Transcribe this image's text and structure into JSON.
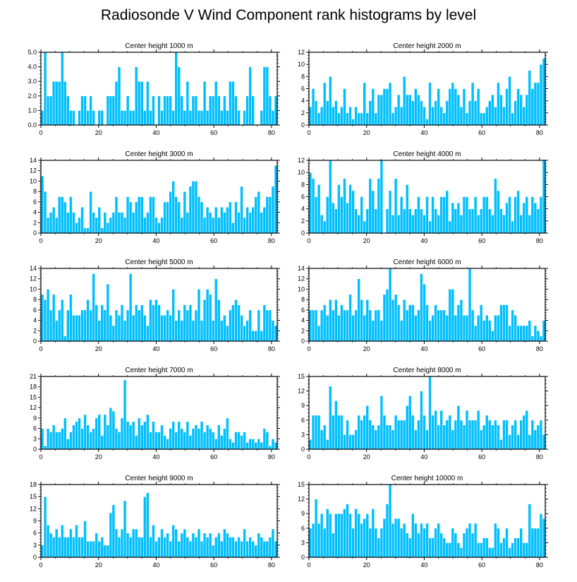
{
  "title": "Radiosonde V Wind Component rank histograms by level",
  "bar_color": "#00BFFF",
  "chart_data": [
    {
      "type": "bar",
      "title": "Center height 1000 m",
      "ylim": [
        0,
        5
      ],
      "yticks": [
        0,
        1,
        2,
        3,
        4,
        5
      ],
      "ytick_labels": [
        "0.0",
        "1.0",
        "2.0",
        "3.0",
        "4.0",
        "5.0"
      ],
      "xlim": [
        0,
        82
      ],
      "xticks": [
        0,
        20,
        40,
        60,
        80
      ],
      "values": [
        1,
        5,
        2,
        2,
        3,
        3,
        3,
        5,
        3,
        2,
        1,
        1,
        0,
        1,
        2,
        2,
        1,
        2,
        1,
        0,
        1,
        1,
        0,
        2,
        2,
        2,
        3,
        4,
        1,
        1,
        2,
        1,
        1,
        4,
        3,
        3,
        1,
        3,
        1,
        2,
        0,
        2,
        1,
        2,
        2,
        2,
        1,
        5,
        4,
        2,
        1,
        3,
        1,
        2,
        2,
        1,
        1,
        3,
        1,
        2,
        2,
        3,
        2,
        1,
        2,
        1,
        3,
        3,
        2,
        1,
        0,
        1,
        2,
        4,
        2,
        0,
        0,
        1,
        4,
        4,
        2,
        1,
        2
      ]
    },
    {
      "type": "bar",
      "title": "Center height 2000 m",
      "ylim": [
        0,
        12
      ],
      "yticks": [
        0,
        2,
        4,
        6,
        8,
        10,
        12
      ],
      "ytick_labels": [
        "0",
        "2",
        "4",
        "6",
        "8",
        "10",
        "12"
      ],
      "xlim": [
        0,
        82
      ],
      "xticks": [
        0,
        20,
        40,
        60,
        80
      ],
      "values": [
        3,
        6,
        4,
        2,
        3,
        7,
        4,
        8,
        3,
        4,
        2,
        3,
        6,
        2,
        3,
        1,
        3,
        2,
        2,
        7,
        2,
        4,
        6,
        2,
        5,
        5,
        6,
        6,
        7,
        2,
        3,
        5,
        3,
        8,
        5,
        5,
        4,
        6,
        5,
        4,
        3,
        1,
        7,
        3,
        4,
        6,
        3,
        2,
        4,
        6,
        7,
        6,
        5,
        3,
        6,
        2,
        4,
        7,
        4,
        6,
        2,
        2,
        3,
        4,
        5,
        3,
        7,
        5,
        3,
        6,
        8,
        2,
        4,
        6,
        5,
        3,
        5,
        9,
        6,
        7,
        7,
        10,
        11
      ]
    },
    {
      "type": "bar",
      "title": "Center height 3000 m",
      "ylim": [
        0,
        14
      ],
      "yticks": [
        0,
        2,
        4,
        6,
        8,
        10,
        12,
        14
      ],
      "ytick_labels": [
        "0",
        "2",
        "4",
        "6",
        "8",
        "10",
        "12",
        "14"
      ],
      "xlim": [
        0,
        82
      ],
      "xticks": [
        0,
        20,
        40,
        60,
        80
      ],
      "values": [
        11,
        8,
        3,
        4,
        5,
        3,
        7,
        7,
        6,
        4,
        7,
        4,
        2,
        3,
        5,
        1,
        1,
        8,
        4,
        3,
        5,
        1,
        4,
        2,
        3,
        4,
        7,
        4,
        4,
        3,
        7,
        6,
        4,
        6,
        7,
        7,
        3,
        4,
        7,
        7,
        3,
        2,
        3,
        6,
        6,
        8,
        10,
        7,
        6,
        3,
        8,
        4,
        9,
        10,
        10,
        7,
        6,
        3,
        5,
        4,
        3,
        5,
        3,
        5,
        4,
        5,
        6,
        2,
        6,
        4,
        9,
        3,
        5,
        4,
        5,
        7,
        8,
        4,
        5,
        7,
        7,
        9,
        13
      ]
    },
    {
      "type": "bar",
      "title": "Center height 4000 m",
      "ylim": [
        0,
        12
      ],
      "yticks": [
        0,
        2,
        4,
        6,
        8,
        10,
        12
      ],
      "ytick_labels": [
        "0",
        "2",
        "4",
        "6",
        "8",
        "10",
        "12"
      ],
      "xlim": [
        0,
        82
      ],
      "xticks": [
        0,
        20,
        40,
        60,
        80
      ],
      "values": [
        10,
        9,
        6,
        8,
        3,
        2,
        6,
        12,
        5,
        4,
        8,
        6,
        9,
        5,
        8,
        7,
        4,
        3,
        6,
        2,
        4,
        9,
        7,
        4,
        9,
        12,
        0,
        4,
        7,
        3,
        9,
        3,
        6,
        4,
        8,
        4,
        3,
        4,
        6,
        4,
        3,
        6,
        2,
        6,
        4,
        3,
        6,
        6,
        7,
        2,
        5,
        4,
        5,
        3,
        6,
        6,
        4,
        4,
        6,
        3,
        4,
        6,
        6,
        4,
        3,
        9,
        7,
        4,
        3,
        5,
        6,
        2,
        6,
        7,
        3,
        5,
        6,
        3,
        6,
        5,
        4,
        6,
        12
      ]
    },
    {
      "type": "bar",
      "title": "Center height 5000 m",
      "ylim": [
        0,
        14
      ],
      "yticks": [
        0,
        2,
        4,
        6,
        8,
        10,
        12,
        14
      ],
      "ytick_labels": [
        "0",
        "2",
        "4",
        "6",
        "8",
        "10",
        "12",
        "14"
      ],
      "xlim": [
        0,
        82
      ],
      "xticks": [
        0,
        20,
        40,
        60,
        80
      ],
      "values": [
        9,
        8,
        10,
        6,
        9,
        4,
        6,
        8,
        1,
        6,
        9,
        5,
        5,
        5,
        6,
        6,
        8,
        6,
        13,
        7,
        4,
        7,
        6,
        11,
        5,
        3,
        6,
        5,
        7,
        4,
        6,
        13,
        5,
        7,
        6,
        7,
        5,
        3,
        8,
        7,
        8,
        7,
        5,
        5,
        6,
        5,
        10,
        4,
        6,
        4,
        7,
        6,
        7,
        4,
        6,
        10,
        4,
        8,
        10,
        9,
        4,
        12,
        8,
        4,
        5,
        3,
        6,
        7,
        8,
        7,
        5,
        3,
        4,
        6,
        2,
        2,
        6,
        2,
        7,
        6,
        6,
        4,
        3
      ]
    },
    {
      "type": "bar",
      "title": "Center height 6000 m",
      "ylim": [
        0,
        14
      ],
      "yticks": [
        0,
        2,
        4,
        6,
        8,
        10,
        12,
        14
      ],
      "ytick_labels": [
        "0",
        "2",
        "4",
        "6",
        "8",
        "10",
        "12",
        "14"
      ],
      "xlim": [
        0,
        82
      ],
      "xticks": [
        0,
        20,
        40,
        60,
        80
      ],
      "values": [
        6,
        6,
        6,
        3,
        6,
        7,
        5,
        8,
        6,
        8,
        5,
        7,
        6,
        6,
        9,
        5,
        6,
        12,
        8,
        5,
        8,
        6,
        4,
        6,
        6,
        4,
        9,
        10,
        14,
        8,
        9,
        7,
        4,
        8,
        6,
        7,
        7,
        5,
        6,
        13,
        11,
        7,
        4,
        5,
        7,
        6,
        6,
        6,
        5,
        10,
        10,
        5,
        7,
        8,
        5,
        5,
        14,
        6,
        3,
        5,
        7,
        4,
        5,
        4,
        2,
        5,
        5,
        7,
        7,
        7,
        3,
        6,
        5,
        3,
        3,
        3,
        3,
        4,
        1,
        3,
        2,
        1,
        4
      ]
    },
    {
      "type": "bar",
      "title": "Center height 7000 m",
      "ylim": [
        0,
        21
      ],
      "yticks": [
        0,
        3,
        6,
        9,
        12,
        15,
        18,
        21
      ],
      "ytick_labels": [
        "0",
        "3",
        "6",
        "9",
        "12",
        "15",
        "18",
        "21"
      ],
      "xlim": [
        0,
        82
      ],
      "xticks": [
        0,
        20,
        40,
        60,
        80
      ],
      "values": [
        6,
        1,
        6,
        5,
        7,
        5,
        5,
        6,
        9,
        3,
        5,
        7,
        8,
        9,
        6,
        10,
        7,
        5,
        6,
        9,
        10,
        4,
        10,
        7,
        12,
        11,
        6,
        5,
        9,
        20,
        8,
        7,
        8,
        4,
        9,
        7,
        8,
        10,
        5,
        8,
        5,
        5,
        7,
        4,
        3,
        6,
        8,
        5,
        8,
        6,
        5,
        8,
        4,
        6,
        7,
        6,
        8,
        5,
        7,
        6,
        5,
        3,
        7,
        4,
        6,
        9,
        3,
        2,
        5,
        5,
        4,
        5,
        2,
        3,
        3,
        2,
        3,
        2,
        6,
        5,
        1,
        3,
        2
      ]
    },
    {
      "type": "bar",
      "title": "Center height 8000 m",
      "ylim": [
        0,
        15
      ],
      "yticks": [
        0,
        3,
        6,
        9,
        12,
        15
      ],
      "ytick_labels": [
        "0",
        "3",
        "6",
        "9",
        "12",
        "15"
      ],
      "xlim": [
        0,
        82
      ],
      "xticks": [
        0,
        20,
        40,
        60,
        80
      ],
      "values": [
        2,
        7,
        7,
        7,
        4,
        5,
        2,
        13,
        7,
        10,
        7,
        7,
        3,
        6,
        3,
        3,
        4,
        7,
        6,
        7,
        9,
        6,
        5,
        4,
        5,
        11,
        7,
        5,
        5,
        4,
        7,
        6,
        6,
        6,
        9,
        11,
        7,
        4,
        6,
        12,
        7,
        4,
        15,
        7,
        8,
        5,
        8,
        5,
        6,
        7,
        4,
        6,
        9,
        6,
        5,
        8,
        6,
        6,
        6,
        8,
        4,
        5,
        7,
        6,
        5,
        6,
        5,
        2,
        6,
        6,
        3,
        5,
        6,
        3,
        6,
        7,
        8,
        3,
        6,
        4,
        5,
        6,
        3
      ]
    },
    {
      "type": "bar",
      "title": "Center height 9000 m",
      "ylim": [
        0,
        18
      ],
      "yticks": [
        0,
        3,
        6,
        9,
        12,
        15,
        18
      ],
      "ytick_labels": [
        "0",
        "3",
        "6",
        "9",
        "12",
        "15",
        "18"
      ],
      "xlim": [
        0,
        82
      ],
      "xticks": [
        0,
        20,
        40,
        60,
        80
      ],
      "values": [
        3,
        15,
        8,
        6,
        5,
        7,
        5,
        8,
        5,
        5,
        7,
        5,
        8,
        5,
        5,
        9,
        4,
        4,
        4,
        6,
        4,
        5,
        3,
        3,
        11,
        13,
        7,
        5,
        7,
        14,
        6,
        5,
        7,
        7,
        5,
        5,
        15,
        16,
        5,
        8,
        4,
        5,
        7,
        5,
        6,
        4,
        8,
        7,
        4,
        6,
        7,
        5,
        4,
        6,
        5,
        7,
        4,
        6,
        5,
        6,
        3,
        5,
        6,
        4,
        7,
        6,
        5,
        5,
        4,
        5,
        4,
        7,
        4,
        5,
        4,
        3,
        6,
        5,
        4,
        4,
        5,
        7,
        4
      ]
    },
    {
      "type": "bar",
      "title": "Center height 10000 m",
      "ylim": [
        0,
        15
      ],
      "yticks": [
        0,
        3,
        6,
        9,
        12,
        15
      ],
      "ytick_labels": [
        "0",
        "3",
        "6",
        "9",
        "12",
        "15"
      ],
      "xlim": [
        0,
        82
      ],
      "xticks": [
        0,
        20,
        40,
        60,
        80
      ],
      "values": [
        6,
        7,
        12,
        7,
        9,
        6,
        10,
        9,
        5,
        9,
        9,
        9,
        10,
        11,
        9,
        6,
        10,
        9,
        7,
        8,
        9,
        6,
        10,
        6,
        4,
        6,
        8,
        11,
        15,
        7,
        8,
        8,
        6,
        7,
        5,
        4,
        9,
        7,
        5,
        7,
        6,
        7,
        4,
        4,
        6,
        7,
        5,
        4,
        3,
        3,
        6,
        5,
        3,
        2,
        5,
        6,
        7,
        5,
        7,
        3,
        3,
        4,
        4,
        2,
        2,
        7,
        6,
        3,
        4,
        6,
        2,
        3,
        4,
        4,
        6,
        3,
        3,
        11,
        6,
        6,
        6,
        9,
        8
      ]
    }
  ]
}
